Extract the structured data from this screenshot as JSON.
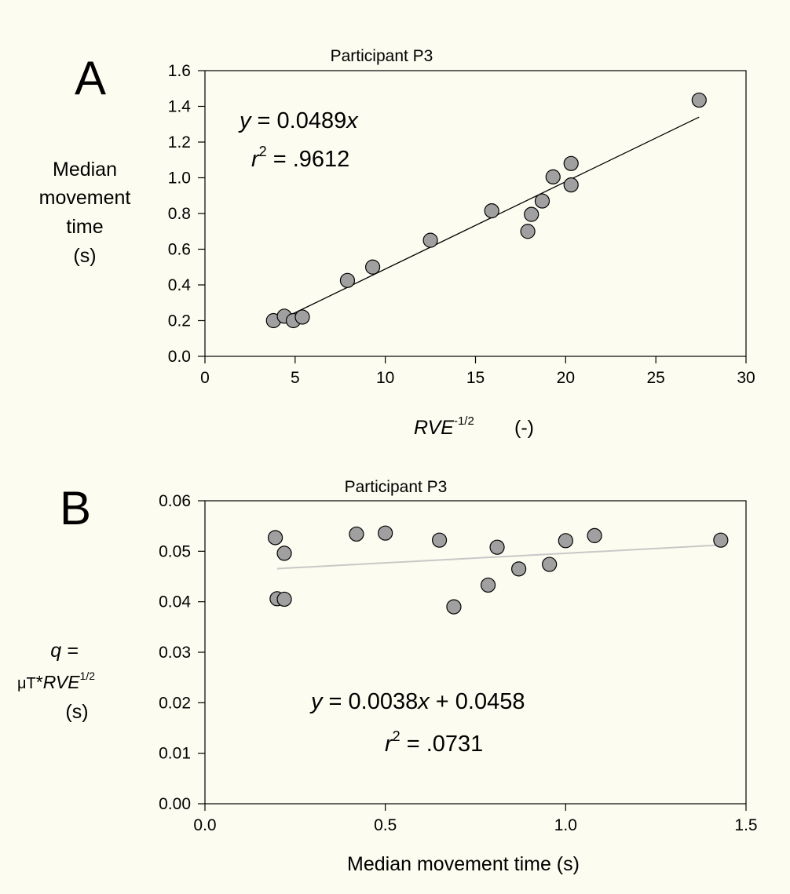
{
  "chart_data": [
    {
      "panel_label": "A",
      "type": "scatter",
      "title": "Participant P3",
      "ylabel": [
        "Median",
        "movement",
        "time",
        "(s)"
      ],
      "xlabel": {
        "base": "RVE",
        "sup": "-1/2",
        "suffix": "(-)"
      },
      "xlim": [
        0,
        30
      ],
      "ylim": [
        0,
        1.6
      ],
      "xticks": [
        "0",
        "5",
        "10",
        "15",
        "20",
        "25",
        "30"
      ],
      "yticks": [
        "0.0",
        "0.2",
        "0.4",
        "0.6",
        "0.8",
        "1.0",
        "1.2",
        "1.4",
        "1.6"
      ],
      "equation": {
        "lhs": "y",
        "eq": " = 0.0489",
        "var": "x"
      },
      "r2": {
        "base": "r",
        "sup": "2",
        "value": " = .9612"
      },
      "fit": {
        "slope": 0.0489,
        "intercept": 0,
        "x_range": [
          3.8,
          27.4
        ],
        "color": "#000000"
      },
      "points": [
        [
          3.8,
          0.2
        ],
        [
          4.4,
          0.225
        ],
        [
          4.9,
          0.2
        ],
        [
          5.4,
          0.22
        ],
        [
          7.9,
          0.425
        ],
        [
          9.3,
          0.5
        ],
        [
          12.5,
          0.65
        ],
        [
          15.9,
          0.815
        ],
        [
          17.9,
          0.7
        ],
        [
          18.1,
          0.795
        ],
        [
          18.7,
          0.87
        ],
        [
          19.3,
          1.005
        ],
        [
          20.3,
          0.96
        ],
        [
          20.3,
          1.08
        ],
        [
          27.4,
          1.435
        ]
      ],
      "marker_fill": "#a0a0a0"
    },
    {
      "panel_label": "B",
      "type": "scatter",
      "title": "Participant P3",
      "ylabel": {
        "line1": "q  =",
        "mu": "μT",
        "star": "*",
        "base": "RVE",
        "sup": "1/2",
        "unit": "(s)"
      },
      "xlabel": "Median movement time   (s)",
      "xlim": [
        0,
        1.5
      ],
      "ylim": [
        0,
        0.06
      ],
      "xticks": [
        "0.0",
        "0.5",
        "1.0",
        "1.5"
      ],
      "yticks": [
        "0.00",
        "0.01",
        "0.02",
        "0.03",
        "0.04",
        "0.05",
        "0.06"
      ],
      "equation": {
        "lhs": "y",
        "eq": " = 0.0038",
        "var": "x",
        "rest": " + 0.0458"
      },
      "r2": {
        "base": "r",
        "sup": "2",
        "value": " = .0731"
      },
      "fit": {
        "slope": 0.0038,
        "intercept": 0.0458,
        "x_range": [
          0.2,
          1.43
        ],
        "color": "#c8c8c8"
      },
      "points": [
        [
          0.195,
          0.0527
        ],
        [
          0.2,
          0.0406
        ],
        [
          0.22,
          0.0496
        ],
        [
          0.22,
          0.0405
        ],
        [
          0.42,
          0.0534
        ],
        [
          0.5,
          0.0536
        ],
        [
          0.65,
          0.0522
        ],
        [
          0.69,
          0.039
        ],
        [
          0.785,
          0.0433
        ],
        [
          0.81,
          0.0508
        ],
        [
          0.87,
          0.0465
        ],
        [
          0.955,
          0.0474
        ],
        [
          1.0,
          0.0521
        ],
        [
          1.08,
          0.0531
        ],
        [
          1.43,
          0.0522
        ]
      ],
      "marker_fill": "#a0a0a0"
    }
  ]
}
